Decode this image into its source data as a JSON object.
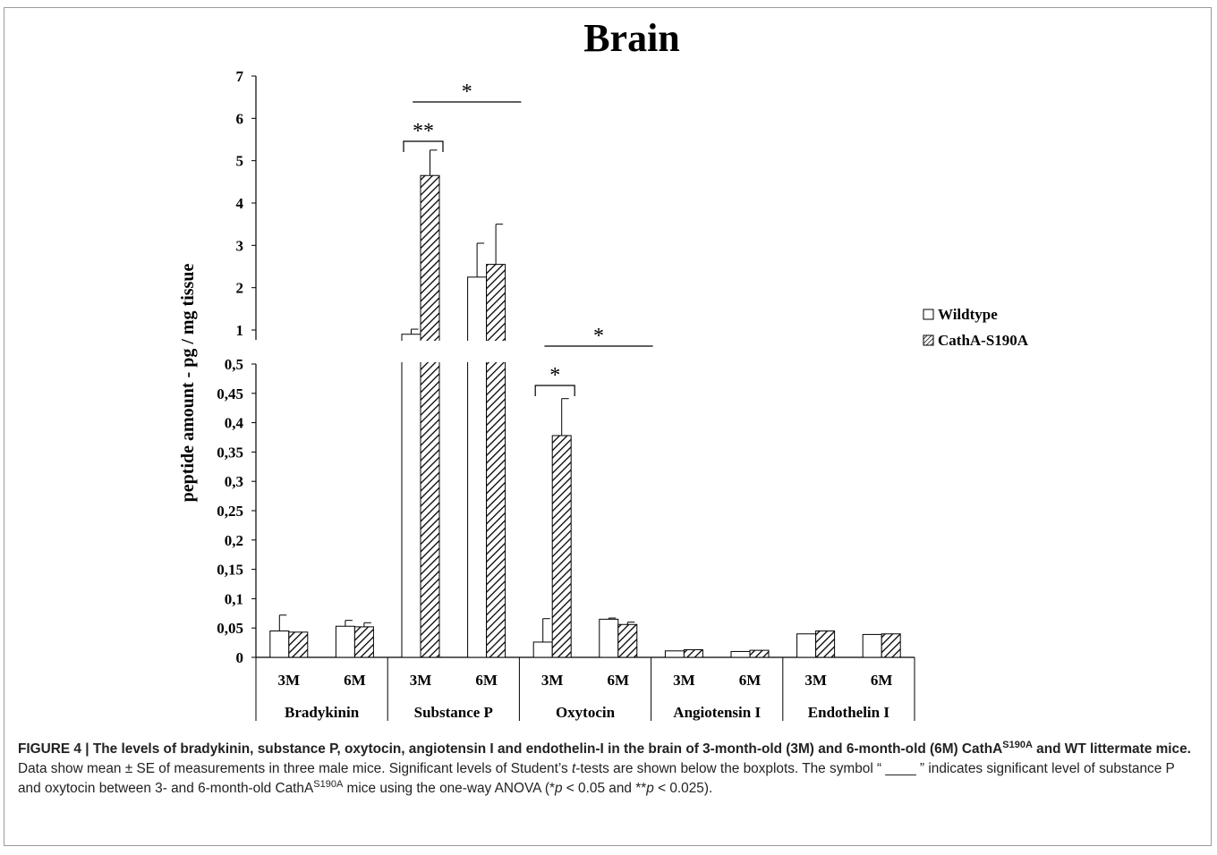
{
  "chart_data": {
    "type": "bar",
    "title": "Brain",
    "ylabel": "peptide amount - pg / mg tissue",
    "axis_break": true,
    "lower_ylim": [
      0,
      0.5
    ],
    "lower_ticks": [
      "0",
      "0,05",
      "0,1",
      "0,15",
      "0,2",
      "0,25",
      "0,3",
      "0,35",
      "0,4",
      "0,45",
      "0,5"
    ],
    "upper_ylim": [
      0.75,
      7
    ],
    "upper_ticks": [
      "1",
      "2",
      "3",
      "4",
      "5",
      "6",
      "7"
    ],
    "groups": [
      "Bradykinin",
      "Substance P",
      "Oxytocin",
      "Angiotensin I",
      "Endothelin I"
    ],
    "time_labels": [
      "3M",
      "6M"
    ],
    "series": [
      {
        "name": "Wildtype",
        "pattern": "open",
        "values": [
          0.045,
          0.053,
          0.9,
          2.25,
          0.026,
          0.065,
          0.011,
          0.01,
          0.04,
          0.039
        ],
        "errors": [
          0.027,
          0.01,
          0.12,
          0.8,
          0.04,
          0.002,
          0.001,
          0.001,
          0.001,
          0.001
        ]
      },
      {
        "name": "CathA-S190A",
        "pattern": "hatched",
        "values": [
          0.043,
          0.052,
          4.65,
          2.55,
          0.378,
          0.056,
          0.013,
          0.012,
          0.045,
          0.04
        ],
        "errors": [
          0.001,
          0.007,
          0.6,
          0.95,
          0.063,
          0.004,
          0.001,
          0.001,
          0.001,
          0.001
        ]
      }
    ],
    "annotations": [
      {
        "text": "**",
        "type": "bracket",
        "group": "Substance P",
        "span": "3M"
      },
      {
        "text": "*",
        "type": "line",
        "group": "Substance P",
        "span": "3M-6M"
      },
      {
        "text": "*",
        "type": "bracket",
        "group": "Oxytocin",
        "span": "3M"
      },
      {
        "text": "*",
        "type": "line",
        "group": "Oxytocin",
        "span": "3M-6M"
      }
    ],
    "legend_position": "right",
    "colors": {
      "bar_fill": "#ffffff",
      "bar_stroke": "#000000",
      "hatch": "#000000"
    }
  },
  "caption": {
    "figure_label": "FIGURE 4 | ",
    "bold_part1": "The levels of bradykinin, substance P, oxytocin, angiotensin I and endothelin-I in the brain of 3-month-old (3M) and 6-month-old (6M) CathA",
    "sup1": "S190A",
    "bold_part2": " and WT littermate mice.",
    "text1": " Data show mean ± SE of measurements in three male mice. Significant levels of Student’s ",
    "italic_t": "t",
    "text2": "-tests are shown below the boxplots. The symbol “ ____ ” indicates significant level of substance P and oxytocin between 3- and 6-month-old CathA",
    "sup2": "S190A",
    "text3": " mice using the one-way ANOVA (*",
    "italic_p1": "p",
    "text4": " < 0.05 and **",
    "italic_p2": "p",
    "text5": " < 0.025)."
  }
}
